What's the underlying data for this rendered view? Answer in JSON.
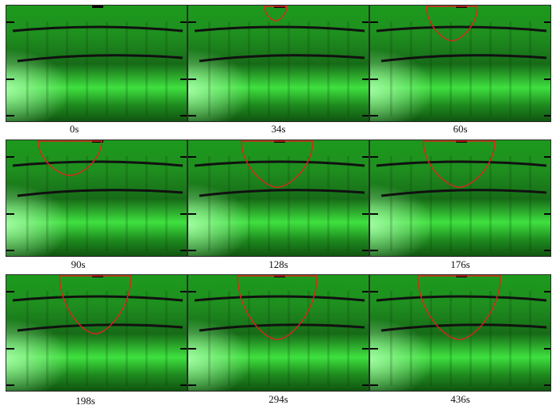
{
  "frames": [
    {
      "label": "0s",
      "front_depth": 0
    },
    {
      "label": "34s",
      "front_depth": 0.13
    },
    {
      "label": "60s",
      "front_depth": 0.3
    },
    {
      "label": "90s",
      "front_depth": 0.3
    },
    {
      "label": "128s",
      "front_depth": 0.4
    },
    {
      "label": "176s",
      "front_depth": 0.4
    },
    {
      "label": "198s",
      "front_depth": 0.5
    },
    {
      "label": "294s",
      "front_depth": 0.55
    },
    {
      "label": "436s",
      "front_depth": 0.55
    }
  ],
  "colors": {
    "front_outline": "#e0241c",
    "tube_glow": "#3fe03f",
    "layer_line": "#111111"
  }
}
